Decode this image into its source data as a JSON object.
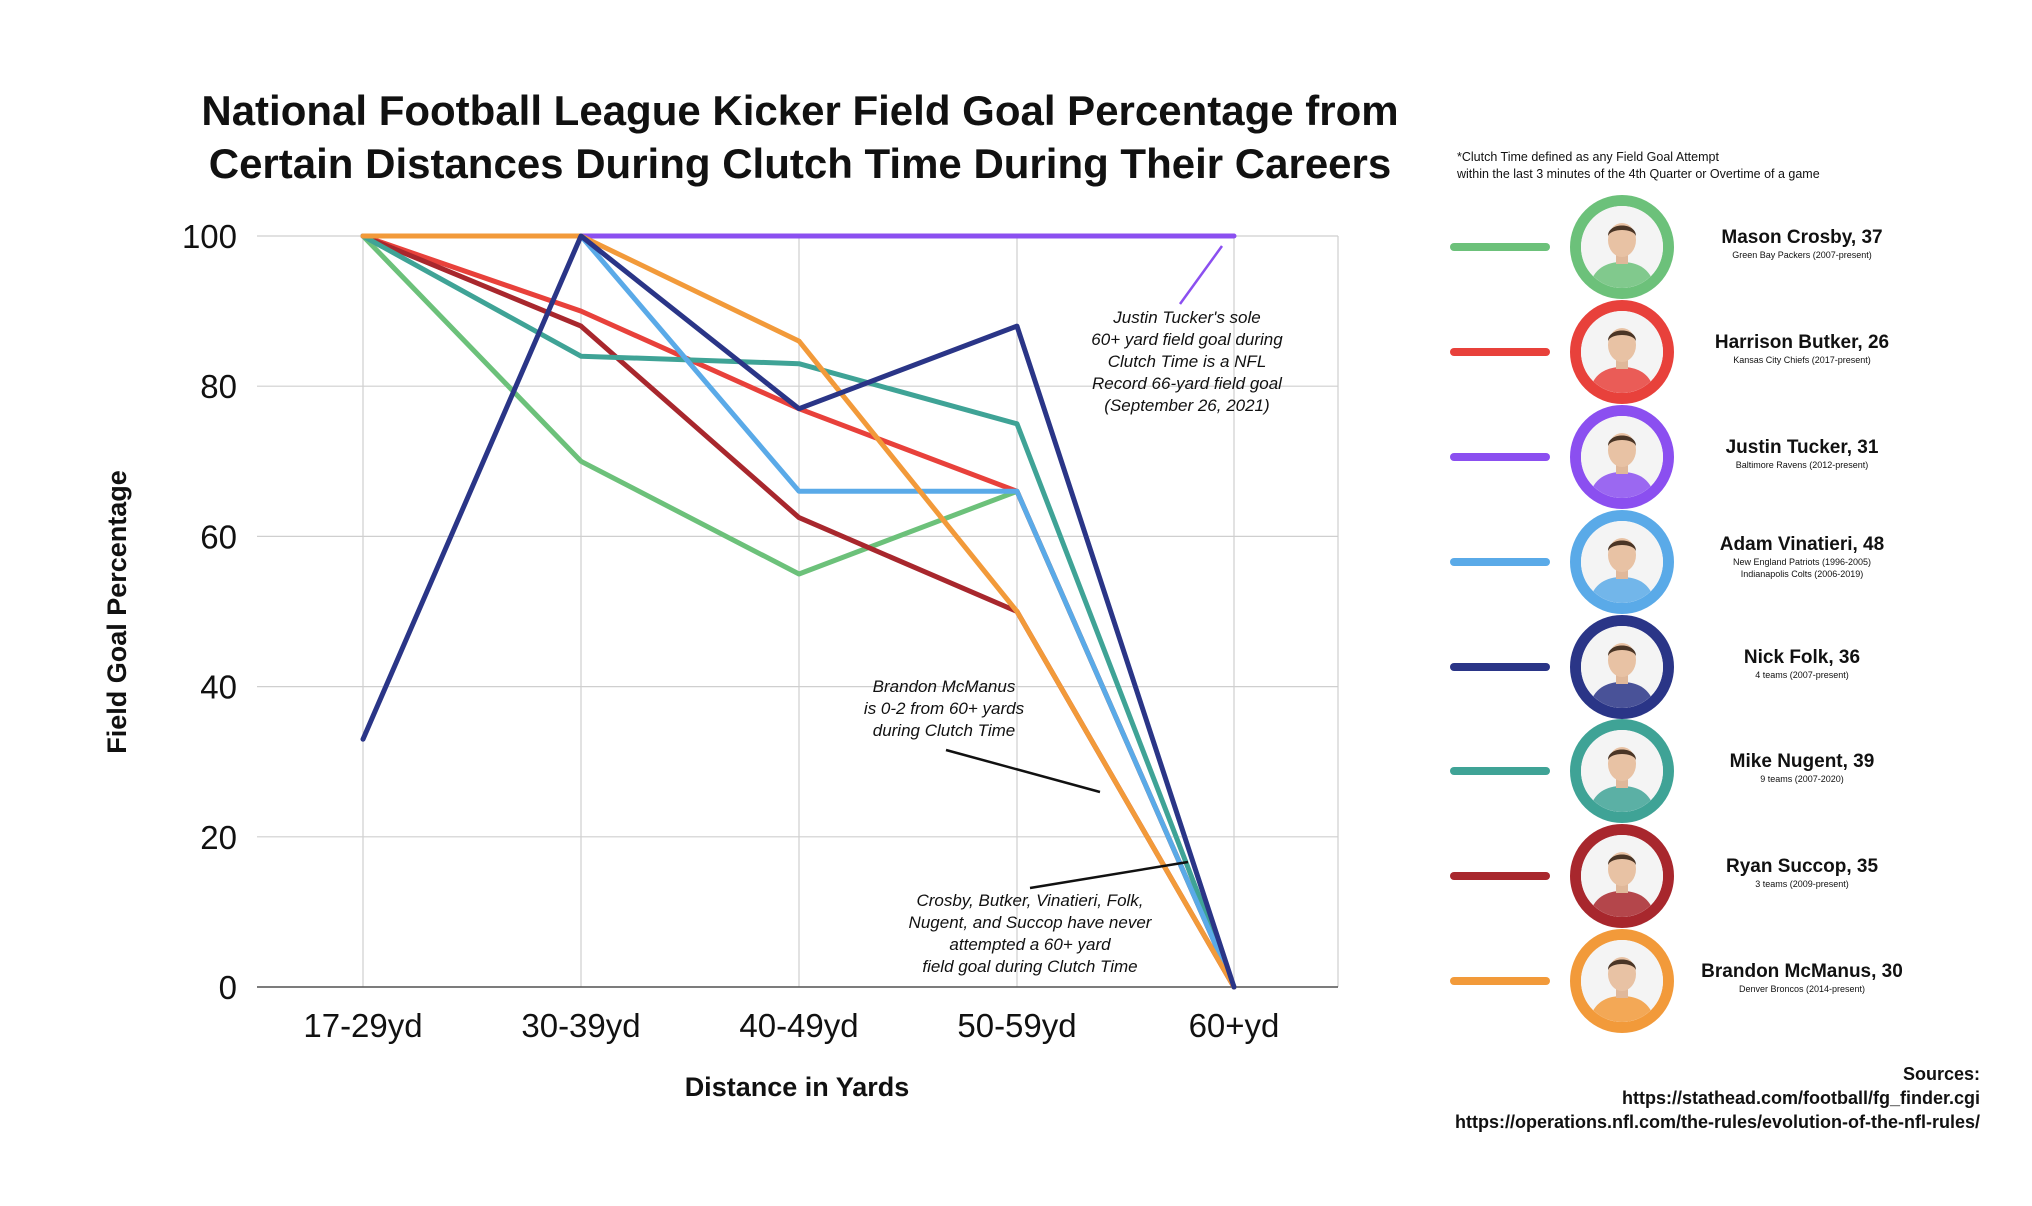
{
  "chart_data": {
    "type": "line",
    "title": [
      "National Football League Kicker Field Goal Percentage from",
      "Certain Distances During Clutch Time During Their Careers"
    ],
    "xlabel": "Distance in Yards",
    "ylabel": "Field Goal Percentage",
    "categories": [
      "17-29yd",
      "30-39yd",
      "40-49yd",
      "50-59yd",
      "60+yd"
    ],
    "ylim": [
      0,
      100
    ],
    "yticks": [
      0,
      20,
      40,
      60,
      80,
      100
    ],
    "grid": true,
    "series": [
      {
        "name": "Mason Crosby, 37",
        "team": [
          "Green Bay Packers (2007-present)"
        ],
        "color": "#6cc17a",
        "values": [
          100,
          70,
          55,
          66,
          0
        ]
      },
      {
        "name": "Harrison Butker, 26",
        "team": [
          "Kansas City Chiefs (2017-present)"
        ],
        "color": "#e8413b",
        "values": [
          100,
          90,
          77,
          66,
          0
        ]
      },
      {
        "name": "Justin Tucker, 31",
        "team": [
          "Baltimore Ravens (2012-present)"
        ],
        "color": "#8b4ff0",
        "values": [
          100,
          100,
          100,
          100,
          100
        ]
      },
      {
        "name": "Adam Vinatieri, 48",
        "team": [
          "New England Patriots (1996-2005)",
          "Indianapolis Colts (2006-2019)"
        ],
        "color": "#5aaae8",
        "values": [
          100,
          100,
          66,
          66,
          0
        ]
      },
      {
        "name": "Nick Folk, 36",
        "team": [
          "4 teams (2007-present)"
        ],
        "color": "#2a3587",
        "values": [
          33,
          100,
          77,
          88,
          0
        ]
      },
      {
        "name": "Mike Nugent, 39",
        "team": [
          "9 teams (2007-2020)"
        ],
        "color": "#3fa396",
        "values": [
          100,
          84,
          83,
          75,
          0
        ]
      },
      {
        "name": "Ryan Succop, 35",
        "team": [
          "3 teams (2009-present)"
        ],
        "color": "#a8272d",
        "values": [
          100,
          88,
          62.5,
          50,
          0
        ]
      },
      {
        "name": "Brandon McManus, 30",
        "team": [
          "Denver Broncos (2014-present)"
        ],
        "color": "#f29a3a",
        "values": [
          100,
          100,
          86,
          50,
          0
        ]
      }
    ],
    "annotations": [
      {
        "lines": [
          "Justin Tucker's sole",
          "60+ yard field goal during",
          "Clutch Time is a NFL",
          "Record 66-yard field goal",
          "(September 26, 2021)"
        ],
        "color": "#8b4ff0"
      },
      {
        "lines": [
          "Brandon McManus",
          "is 0-2 from 60+ yards",
          "during Clutch Time"
        ],
        "color": "#111111"
      },
      {
        "lines": [
          "Crosby, Butker, Vinatieri, Folk,",
          "Nugent, and Succop have never",
          "attempted a 60+ yard",
          "field goal during Clutch Time"
        ],
        "color": "#111111"
      }
    ]
  },
  "footnote": [
    "*Clutch Time defined as any Field Goal Attempt",
    "within the last 3 minutes of the 4th Quarter or Overtime of a game"
  ],
  "sources": [
    "Sources:",
    "https://stathead.com/football/fg_finder.cgi",
    "https://operations.nfl.com/the-rules/evolution-of-the-nfl-rules/"
  ]
}
